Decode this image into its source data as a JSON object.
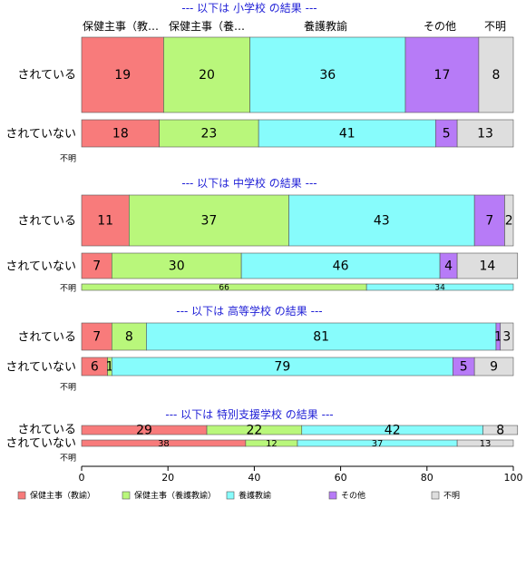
{
  "chart_data": {
    "type": "bar",
    "orientation": "horizontal",
    "stacked": true,
    "categories_header": [
      "保健主事（教…",
      "保健主事（養…",
      "養護教諭",
      "その他",
      "不明"
    ],
    "legend_items": [
      "保健主事（教諭）",
      "保健主事（養護教諭）",
      "養護教諭",
      "その他",
      "不明"
    ],
    "colors": [
      "#f87b7b",
      "#b9f77b",
      "#87fcfc",
      "#b77bf7",
      "#dedede"
    ],
    "xlim": [
      0,
      100
    ],
    "xticks": [
      "0",
      "20",
      "40",
      "60",
      "80",
      "100"
    ],
    "groups": [
      {
        "title": "--- 以下は 小学校 の結果 ---",
        "rows": [
          {
            "label": "されている",
            "values": [
              19,
              20,
              36,
              17,
              8
            ]
          },
          {
            "label": "されていない",
            "values": [
              18,
              23,
              41,
              5,
              13
            ]
          },
          {
            "label": "不明",
            "values": []
          }
        ]
      },
      {
        "title": "--- 以下は 中学校 の結果 ---",
        "rows": [
          {
            "label": "されている",
            "values": [
              11,
              37,
              43,
              7,
              2
            ]
          },
          {
            "label": "されていない",
            "values": [
              7,
              30,
              46,
              4,
              14
            ]
          },
          {
            "label": "不明",
            "values": [
              0,
              66,
              34,
              0,
              0
            ]
          }
        ]
      },
      {
        "title": "--- 以下は 高等学校 の結果 ---",
        "rows": [
          {
            "label": "されている",
            "values": [
              7,
              8,
              81,
              1,
              3
            ]
          },
          {
            "label": "されていない",
            "values": [
              6,
              1,
              79,
              5,
              9
            ]
          },
          {
            "label": "不明",
            "values": []
          }
        ]
      },
      {
        "title": "--- 以下は 特別支援学校 の結果 ---",
        "rows": [
          {
            "label": "されている",
            "values": [
              29,
              22,
              42,
              0,
              8
            ]
          },
          {
            "label": "されていない",
            "values": [
              38,
              12,
              37,
              0,
              13
            ]
          },
          {
            "label": "不明",
            "values": []
          }
        ]
      }
    ]
  }
}
